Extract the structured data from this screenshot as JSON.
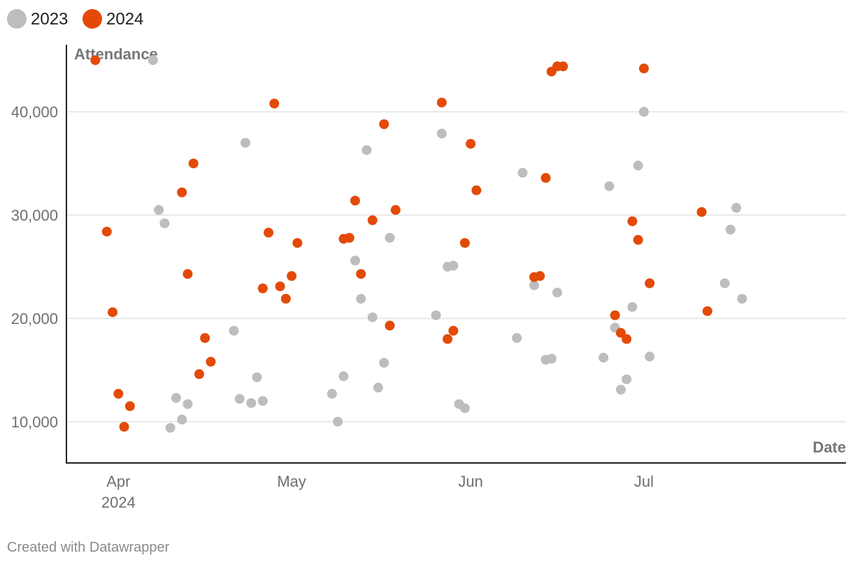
{
  "chart_data": {
    "type": "scatter",
    "xlabel": "Date",
    "ylabel": "Attendance",
    "xlim": [
      "2024-03-23",
      "2024-08-05"
    ],
    "ylim": [
      6000,
      46500
    ],
    "x_ticks": [
      {
        "date": "2024-04-01",
        "label": "Apr",
        "sublabel": "2024"
      },
      {
        "date": "2024-05-01",
        "label": "May",
        "sublabel": ""
      },
      {
        "date": "2024-06-01",
        "label": "Jun",
        "sublabel": ""
      },
      {
        "date": "2024-07-01",
        "label": "Jul",
        "sublabel": ""
      }
    ],
    "y_ticks": [
      {
        "value": 10000,
        "label": "10,000"
      },
      {
        "value": 20000,
        "label": "20,000"
      },
      {
        "value": 30000,
        "label": "30,000"
      },
      {
        "value": 40000,
        "label": "40,000"
      }
    ],
    "grid": true,
    "legend_position": "top-left",
    "series": [
      {
        "name": "2023",
        "color": "#bdbdbd",
        "points": [
          [
            "2024-04-07",
            45000
          ],
          [
            "2024-04-08",
            30500
          ],
          [
            "2024-04-09",
            29200
          ],
          [
            "2024-04-10",
            9400
          ],
          [
            "2024-04-11",
            12300
          ],
          [
            "2024-04-12",
            10200
          ],
          [
            "2024-04-13",
            11700
          ],
          [
            "2024-04-21",
            18800
          ],
          [
            "2024-04-22",
            12200
          ],
          [
            "2024-04-23",
            37000
          ],
          [
            "2024-04-24",
            11800
          ],
          [
            "2024-04-25",
            14300
          ],
          [
            "2024-04-26",
            12000
          ],
          [
            "2024-05-08",
            12700
          ],
          [
            "2024-05-09",
            10000
          ],
          [
            "2024-05-10",
            14400
          ],
          [
            "2024-05-12",
            25600
          ],
          [
            "2024-05-13",
            21900
          ],
          [
            "2024-05-14",
            36300
          ],
          [
            "2024-05-15",
            20100
          ],
          [
            "2024-05-16",
            13300
          ],
          [
            "2024-05-17",
            15700
          ],
          [
            "2024-05-18",
            27800
          ],
          [
            "2024-05-26",
            20300
          ],
          [
            "2024-05-27",
            37900
          ],
          [
            "2024-05-28",
            25000
          ],
          [
            "2024-05-29",
            25100
          ],
          [
            "2024-05-30",
            11700
          ],
          [
            "2024-05-31",
            11300
          ],
          [
            "2024-06-09",
            18100
          ],
          [
            "2024-06-10",
            34100
          ],
          [
            "2024-06-12",
            23200
          ],
          [
            "2024-06-14",
            16000
          ],
          [
            "2024-06-15",
            16100
          ],
          [
            "2024-06-16",
            22500
          ],
          [
            "2024-06-24",
            16200
          ],
          [
            "2024-06-25",
            32800
          ],
          [
            "2024-06-26",
            19100
          ],
          [
            "2024-06-27",
            13100
          ],
          [
            "2024-06-28",
            14100
          ],
          [
            "2024-06-29",
            21100
          ],
          [
            "2024-06-30",
            34800
          ],
          [
            "2024-07-01",
            40000
          ],
          [
            "2024-07-02",
            16300
          ],
          [
            "2024-07-15",
            23400
          ],
          [
            "2024-07-16",
            28600
          ],
          [
            "2024-07-17",
            30700
          ],
          [
            "2024-07-18",
            21900
          ]
        ]
      },
      {
        "name": "2024",
        "color": "#e34a07",
        "points": [
          [
            "2024-03-28",
            45000
          ],
          [
            "2024-03-30",
            28400
          ],
          [
            "2024-03-31",
            20600
          ],
          [
            "2024-04-01",
            12700
          ],
          [
            "2024-04-02",
            9500
          ],
          [
            "2024-04-03",
            11500
          ],
          [
            "2024-04-12",
            32200
          ],
          [
            "2024-04-13",
            24300
          ],
          [
            "2024-04-14",
            35000
          ],
          [
            "2024-04-15",
            14600
          ],
          [
            "2024-04-16",
            18100
          ],
          [
            "2024-04-17",
            15800
          ],
          [
            "2024-04-26",
            22900
          ],
          [
            "2024-04-27",
            28300
          ],
          [
            "2024-04-28",
            40800
          ],
          [
            "2024-04-29",
            23100
          ],
          [
            "2024-04-30",
            21900
          ],
          [
            "2024-05-01",
            24100
          ],
          [
            "2024-05-02",
            27300
          ],
          [
            "2024-05-10",
            27700
          ],
          [
            "2024-05-11",
            27800
          ],
          [
            "2024-05-12",
            31400
          ],
          [
            "2024-05-13",
            24300
          ],
          [
            "2024-05-15",
            29500
          ],
          [
            "2024-05-17",
            38800
          ],
          [
            "2024-05-18",
            19300
          ],
          [
            "2024-05-19",
            30500
          ],
          [
            "2024-05-27",
            40900
          ],
          [
            "2024-05-28",
            18000
          ],
          [
            "2024-05-29",
            18800
          ],
          [
            "2024-05-31",
            27300
          ],
          [
            "2024-06-01",
            36900
          ],
          [
            "2024-06-02",
            32400
          ],
          [
            "2024-06-12",
            24000
          ],
          [
            "2024-06-13",
            24100
          ],
          [
            "2024-06-14",
            33600
          ],
          [
            "2024-06-15",
            43900
          ],
          [
            "2024-06-16",
            44400
          ],
          [
            "2024-06-17",
            44400
          ],
          [
            "2024-06-26",
            20300
          ],
          [
            "2024-06-27",
            18600
          ],
          [
            "2024-06-28",
            18000
          ],
          [
            "2024-06-29",
            29400
          ],
          [
            "2024-06-30",
            27600
          ],
          [
            "2024-07-01",
            44200
          ],
          [
            "2024-07-02",
            23400
          ],
          [
            "2024-07-11",
            30300
          ],
          [
            "2024-07-12",
            20700
          ]
        ]
      }
    ],
    "credit": "Created with Datawrapper"
  }
}
